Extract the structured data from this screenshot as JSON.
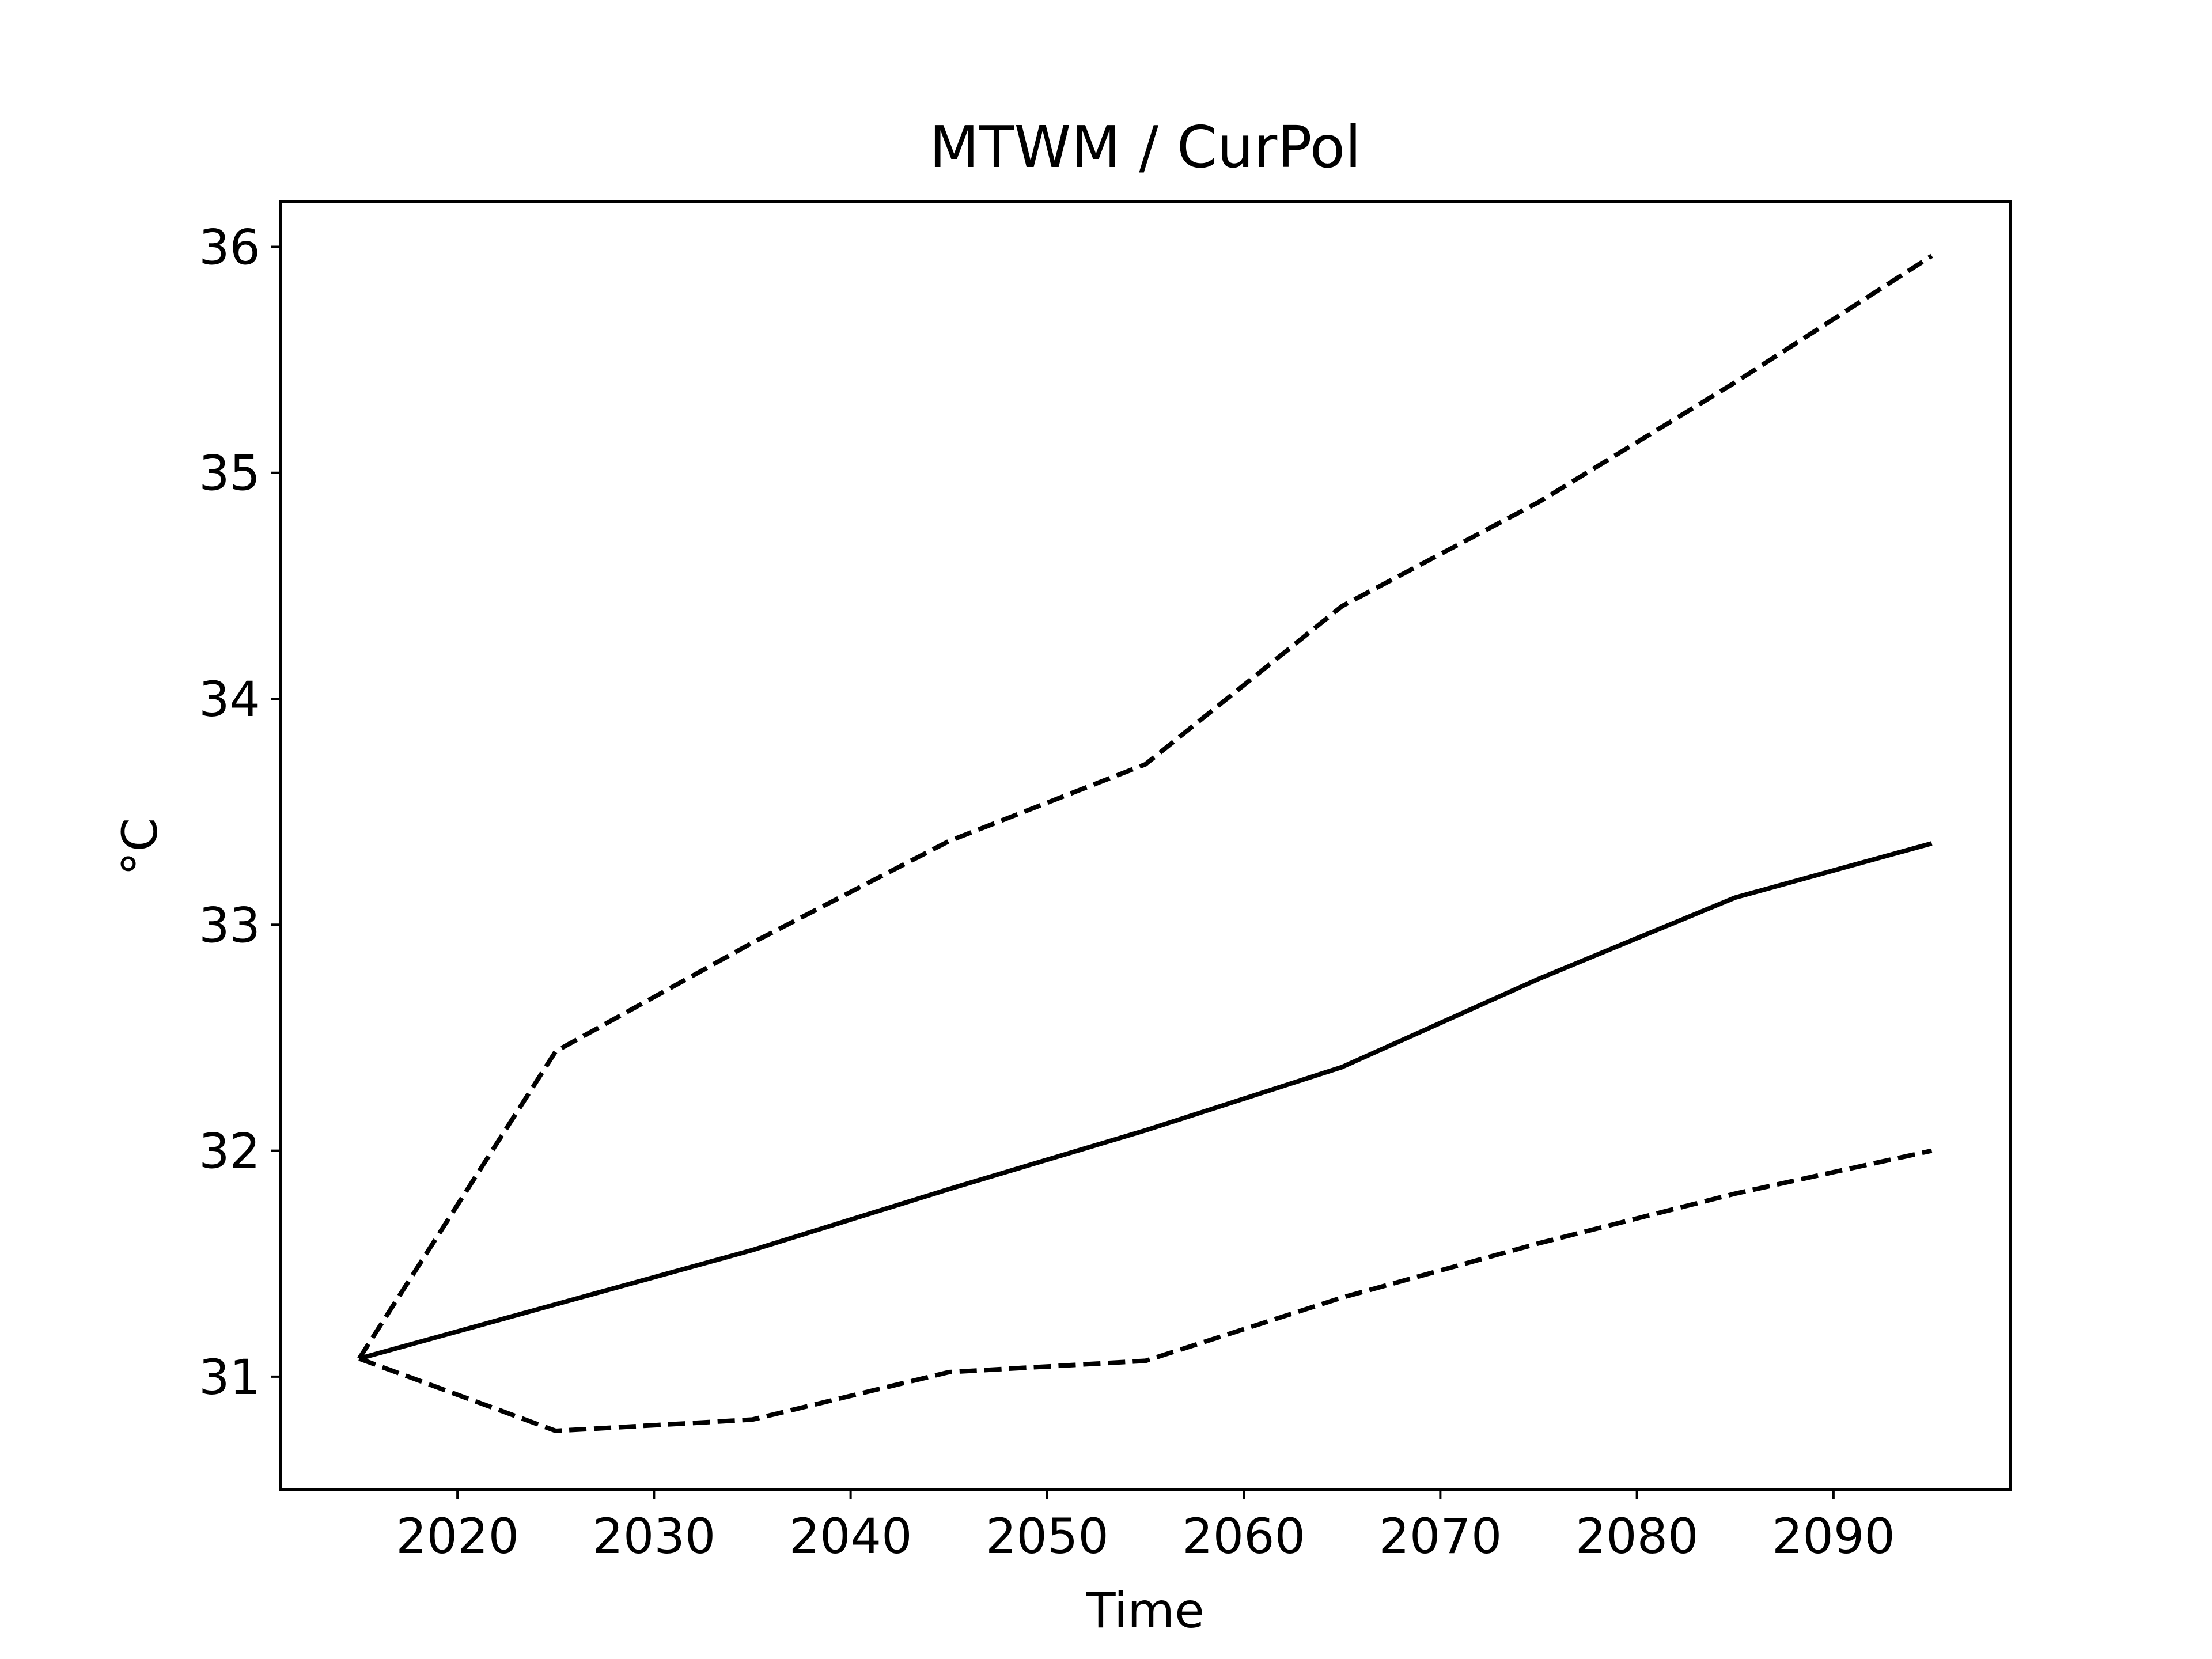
{
  "chart_data": {
    "type": "line",
    "title": "MTWM / CurPol",
    "xlabel": "Time",
    "ylabel": "°C",
    "xlim": [
      2011,
      2099
    ],
    "ylim": [
      30.5,
      36.2
    ],
    "xticks": [
      2020,
      2030,
      2040,
      2050,
      2060,
      2070,
      2080,
      2090
    ],
    "yticks": [
      31,
      32,
      33,
      34,
      35,
      36
    ],
    "grid": false,
    "x": [
      2015,
      2025,
      2035,
      2045,
      2055,
      2065,
      2075,
      2085,
      2095
    ],
    "series": [
      {
        "style": "solid",
        "color": "#000000",
        "values": [
          31.08,
          31.32,
          31.56,
          31.83,
          32.09,
          32.37,
          32.76,
          33.12,
          33.36
        ]
      },
      {
        "style": "dashed",
        "color": "#000000",
        "values": [
          31.08,
          32.44,
          32.92,
          33.37,
          33.71,
          34.41,
          34.87,
          35.4,
          35.96
        ]
      },
      {
        "style": "dashed",
        "color": "#000000",
        "values": [
          31.08,
          30.76,
          30.81,
          31.02,
          31.07,
          31.35,
          31.59,
          31.81,
          32.0
        ]
      }
    ]
  }
}
